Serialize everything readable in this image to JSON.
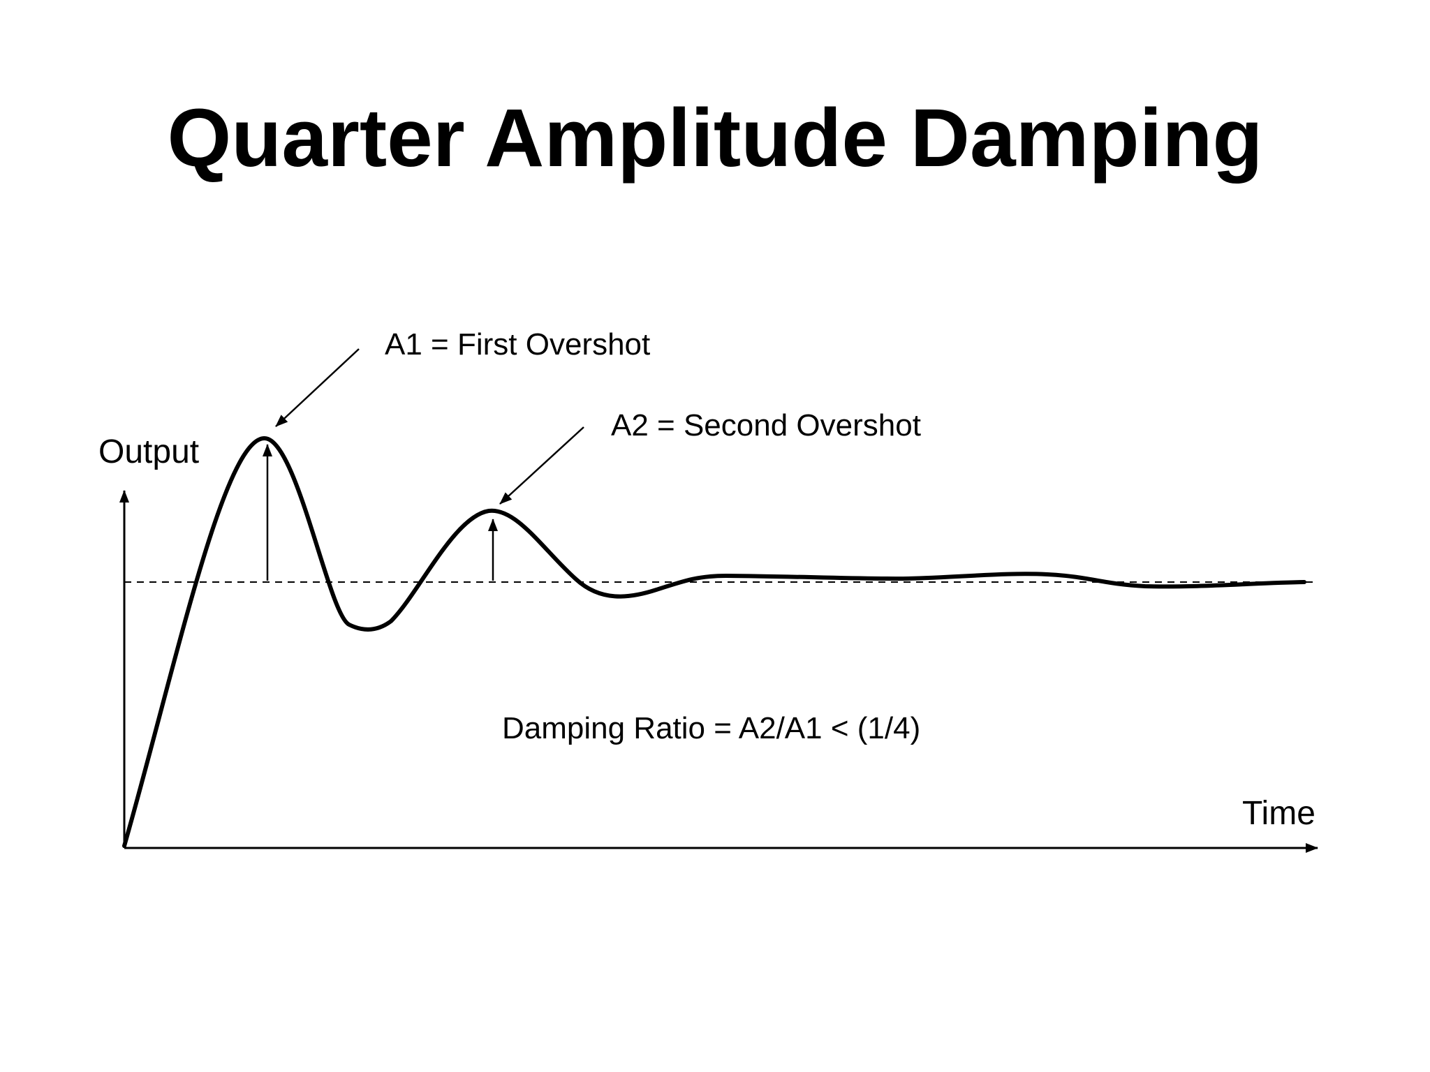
{
  "title": "Quarter Amplitude Damping",
  "labels": {
    "y_axis": "Output",
    "x_axis": "Time",
    "first_overshot": "A1 = First Overshot",
    "second_overshot": "A2 = Second Overshot",
    "damping_ratio": "Damping Ratio = A2/A1 < (1/4)"
  },
  "colors": {
    "stroke": "#000000",
    "background": "#ffffff"
  }
}
